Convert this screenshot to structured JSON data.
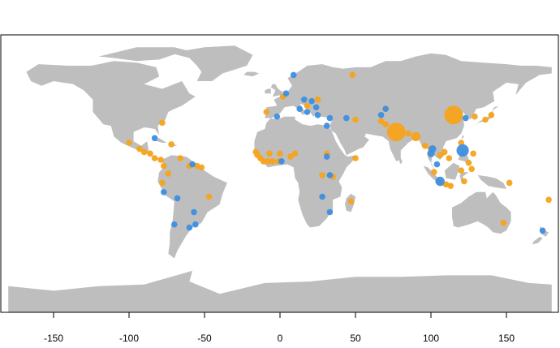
{
  "chart_data": {
    "type": "scatter",
    "title": "",
    "xlabel": "",
    "ylabel": "",
    "xlim": [
      -185,
      185
    ],
    "ylim": [
      -90,
      90
    ],
    "x_ticks": [
      -150,
      -100,
      -50,
      0,
      50,
      100,
      150
    ],
    "x_tick_labels": [
      "-150",
      "-100",
      "-50",
      "0",
      "50",
      "100",
      "150"
    ],
    "grid": false,
    "legend": "none",
    "basemap": {
      "land_color": "#bebebe",
      "background": "#ffffff"
    },
    "series": [
      {
        "color": "#f5a31a",
        "points": [
          {
            "lon": 115,
            "lat": 38,
            "size": 3
          },
          {
            "lon": 77,
            "lat": 27,
            "size": 3
          },
          {
            "lon": 90,
            "lat": 24,
            "size": 1.5
          },
          {
            "lon": 85,
            "lat": 26,
            "size": 1
          },
          {
            "lon": 81,
            "lat": 27,
            "size": 1
          },
          {
            "lon": 70,
            "lat": 32,
            "size": 1
          },
          {
            "lon": 67,
            "lat": 34,
            "size": 1
          },
          {
            "lon": 100,
            "lat": 16,
            "size": 1
          },
          {
            "lon": 96,
            "lat": 18,
            "size": 1
          },
          {
            "lon": 106,
            "lat": 12,
            "size": 1
          },
          {
            "lon": 112,
            "lat": 10,
            "size": 1
          },
          {
            "lon": 109,
            "lat": 14,
            "size": 1
          },
          {
            "lon": 120,
            "lat": 20,
            "size": 1
          },
          {
            "lon": 105,
            "lat": -5,
            "size": 1
          },
          {
            "lon": 110,
            "lat": -7,
            "size": 1
          },
          {
            "lon": 113,
            "lat": -8,
            "size": 1
          },
          {
            "lon": 102,
            "lat": 1,
            "size": 1
          },
          {
            "lon": 120,
            "lat": 2,
            "size": 1
          },
          {
            "lon": 125,
            "lat": 7,
            "size": 1
          },
          {
            "lon": 122,
            "lat": -5,
            "size": 1
          },
          {
            "lon": 127,
            "lat": 3,
            "size": 1
          },
          {
            "lon": 128,
            "lat": 13,
            "size": 1
          },
          {
            "lon": 136,
            "lat": 35,
            "size": 1
          },
          {
            "lon": 129,
            "lat": 37,
            "size": 1
          },
          {
            "lon": 140,
            "lat": 38,
            "size": 1
          },
          {
            "lon": 152,
            "lat": -6,
            "size": 1
          },
          {
            "lon": 148,
            "lat": -32,
            "size": 1
          },
          {
            "lon": 178,
            "lat": -17,
            "size": 1
          },
          {
            "lon": 70,
            "lat": 42,
            "size": 1
          },
          {
            "lon": 48,
            "lat": 64,
            "size": 1
          },
          {
            "lon": 50,
            "lat": 35,
            "size": 1
          },
          {
            "lon": 25,
            "lat": 48,
            "size": 1
          },
          {
            "lon": 18,
            "lat": 44,
            "size": 1
          },
          {
            "lon": 2,
            "lat": 50,
            "size": 1
          },
          {
            "lon": -9,
            "lat": 40,
            "size": 1
          },
          {
            "lon": 50,
            "lat": 10,
            "size": 1
          },
          {
            "lon": 35,
            "lat": -2,
            "size": 1
          },
          {
            "lon": 28,
            "lat": -1,
            "size": 1
          },
          {
            "lon": 31,
            "lat": 13,
            "size": 1
          },
          {
            "lon": 47,
            "lat": -18,
            "size": 1
          },
          {
            "lon": -16,
            "lat": 14,
            "size": 1
          },
          {
            "lon": -15,
            "lat": 12,
            "size": 1
          },
          {
            "lon": -13,
            "lat": 10,
            "size": 1
          },
          {
            "lon": -11,
            "lat": 8,
            "size": 1
          },
          {
            "lon": -8,
            "lat": 8,
            "size": 1
          },
          {
            "lon": -5,
            "lat": 8,
            "size": 1
          },
          {
            "lon": -1,
            "lat": 8,
            "size": 1
          },
          {
            "lon": -7,
            "lat": 13,
            "size": 1
          },
          {
            "lon": 0,
            "lat": 13,
            "size": 1
          },
          {
            "lon": 7,
            "lat": 11,
            "size": 1
          },
          {
            "lon": 10,
            "lat": 13,
            "size": 1
          },
          {
            "lon": -100,
            "lat": 20,
            "size": 1
          },
          {
            "lon": -93,
            "lat": 16,
            "size": 1
          },
          {
            "lon": -90,
            "lat": 14,
            "size": 1
          },
          {
            "lon": -86,
            "lat": 13,
            "size": 1
          },
          {
            "lon": -83,
            "lat": 10,
            "size": 1
          },
          {
            "lon": -79,
            "lat": 9,
            "size": 1
          },
          {
            "lon": -72,
            "lat": 19,
            "size": 1
          },
          {
            "lon": -66,
            "lat": 10,
            "size": 1
          },
          {
            "lon": -60,
            "lat": 5,
            "size": 1
          },
          {
            "lon": -55,
            "lat": 5,
            "size": 1
          },
          {
            "lon": -52,
            "lat": 4,
            "size": 1
          },
          {
            "lon": -74,
            "lat": 0,
            "size": 1
          },
          {
            "lon": -77,
            "lat": 5,
            "size": 1
          },
          {
            "lon": -78,
            "lat": -6,
            "size": 1
          },
          {
            "lon": -47,
            "lat": -15,
            "size": 1
          },
          {
            "lon": -78,
            "lat": 33,
            "size": 1
          }
        ]
      },
      {
        "color": "#3d8ee0",
        "points": [
          {
            "lon": 121,
            "lat": 15,
            "size": 2
          },
          {
            "lon": 106,
            "lat": -5,
            "size": 1.5
          },
          {
            "lon": 101,
            "lat": 16,
            "size": 1.2
          },
          {
            "lon": 100,
            "lat": 13,
            "size": 1.2
          },
          {
            "lon": 104,
            "lat": 6,
            "size": 1
          },
          {
            "lon": 123,
            "lat": 36,
            "size": 1
          },
          {
            "lon": 174,
            "lat": -37,
            "size": 1
          },
          {
            "lon": 9,
            "lat": 64,
            "size": 1
          },
          {
            "lon": 4,
            "lat": 52,
            "size": 1
          },
          {
            "lon": 16,
            "lat": 48,
            "size": 1
          },
          {
            "lon": 21,
            "lat": 47,
            "size": 1
          },
          {
            "lon": 24,
            "lat": 43,
            "size": 1
          },
          {
            "lon": 13,
            "lat": 42,
            "size": 1
          },
          {
            "lon": 18,
            "lat": 40,
            "size": 1
          },
          {
            "lon": -2,
            "lat": 37,
            "size": 1
          },
          {
            "lon": 25,
            "lat": 38,
            "size": 1
          },
          {
            "lon": 33,
            "lat": 36,
            "size": 1
          },
          {
            "lon": 31,
            "lat": 31,
            "size": 1
          },
          {
            "lon": 44,
            "lat": 36,
            "size": 1
          },
          {
            "lon": 70,
            "lat": 42,
            "size": 1
          },
          {
            "lon": 67,
            "lat": 38,
            "size": 1
          },
          {
            "lon": 31,
            "lat": 11,
            "size": 1
          },
          {
            "lon": 28,
            "lat": -15,
            "size": 1
          },
          {
            "lon": 33,
            "lat": -1,
            "size": 1
          },
          {
            "lon": 33,
            "lat": -25,
            "size": 1
          },
          {
            "lon": 1,
            "lat": 8,
            "size": 1
          },
          {
            "lon": -83,
            "lat": 23,
            "size": 1
          },
          {
            "lon": -58,
            "lat": 6,
            "size": 1
          },
          {
            "lon": -77,
            "lat": -12,
            "size": 1
          },
          {
            "lon": -68,
            "lat": -16,
            "size": 1
          },
          {
            "lon": -57,
            "lat": -25,
            "size": 1
          },
          {
            "lon": -70,
            "lat": -33,
            "size": 1
          },
          {
            "lon": -60,
            "lat": -35,
            "size": 1
          },
          {
            "lon": -56,
            "lat": -33,
            "size": 1
          }
        ]
      }
    ]
  }
}
